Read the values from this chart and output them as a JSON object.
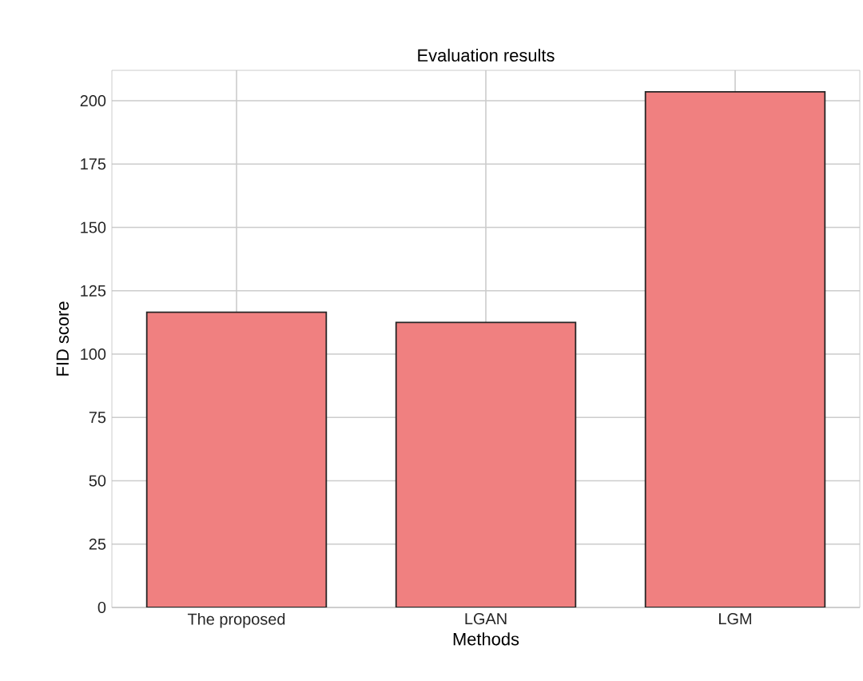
{
  "chart_data": {
    "type": "bar",
    "title": "Evaluation results",
    "xlabel": "Methods",
    "ylabel": "FID score",
    "categories": [
      "The proposed",
      "LGAN",
      "LGM"
    ],
    "values": [
      116.5,
      112.5,
      203.5
    ],
    "color": "#f08080",
    "ylim": [
      0,
      212
    ],
    "yticks": [
      0,
      25,
      50,
      75,
      100,
      125,
      150,
      175,
      200
    ],
    "grid": true
  }
}
